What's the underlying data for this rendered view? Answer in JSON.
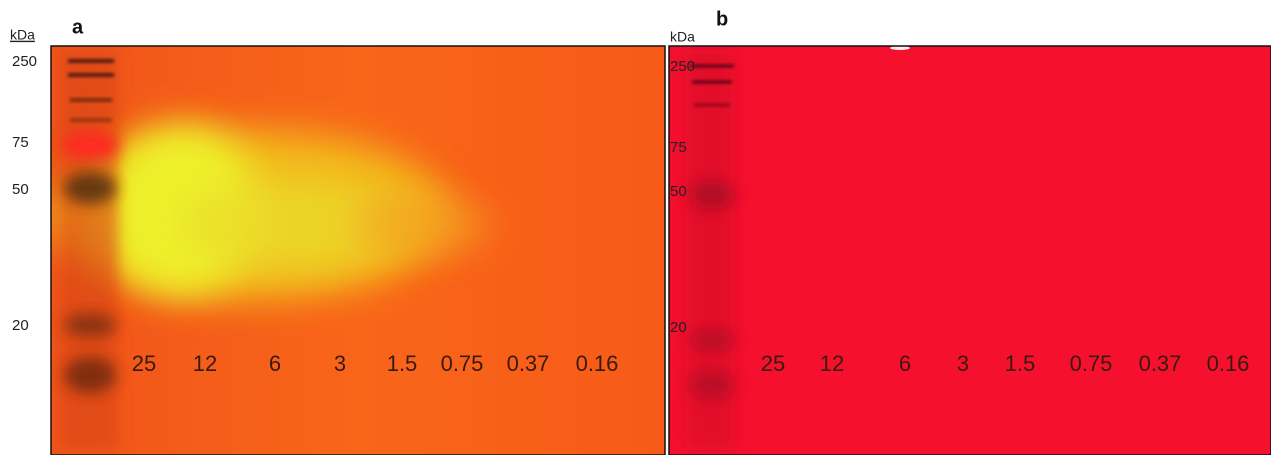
{
  "panels": [
    {
      "label": "a",
      "unit": "kDa",
      "markers": [
        "250",
        "75",
        "50",
        "20"
      ],
      "lanes": [
        "25",
        "12",
        "6",
        "3",
        "1.5",
        "0.75",
        "0.37",
        "0.16"
      ]
    },
    {
      "label": "b",
      "unit": "kDa",
      "markers": [
        "250",
        "75",
        "50",
        "20"
      ],
      "lanes": [
        "25",
        "12",
        "6",
        "3",
        "1.5",
        "0.75",
        "0.37",
        "0.16"
      ]
    }
  ]
}
